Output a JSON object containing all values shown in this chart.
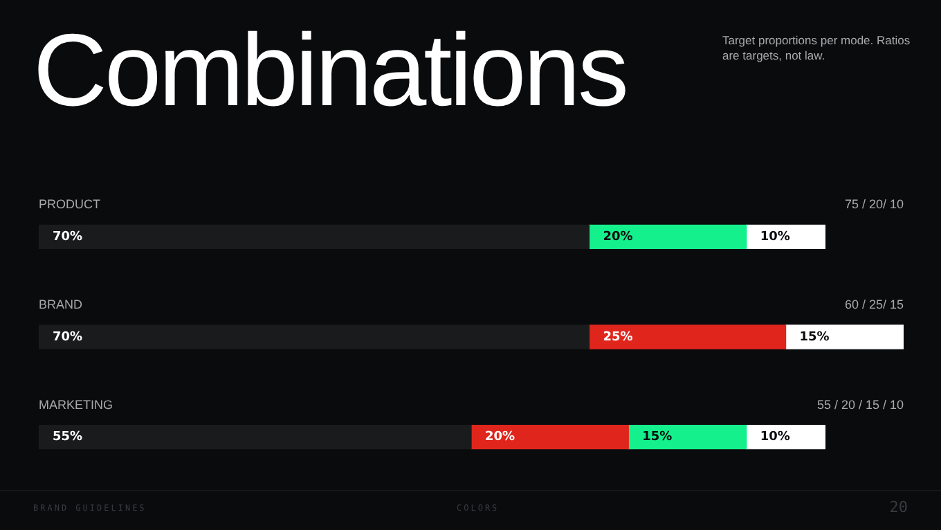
{
  "chart_data": {
    "type": "bar",
    "orientation": "horizontal",
    "stacked": true,
    "title": "Combinations",
    "subtitle": "Target proportions per mode. Ratios are targets, not law.",
    "categories": [
      "PRODUCT",
      "BRAND",
      "MARKETING"
    ],
    "series": [
      {
        "color": "#1a1b1d",
        "values": [
          70,
          70,
          55
        ],
        "value_labels": [
          "70%",
          "70%",
          "55%"
        ]
      },
      {
        "color": "#e0261c",
        "values": [
          null,
          25,
          20
        ],
        "value_labels": [
          null,
          "25%",
          "20%"
        ]
      },
      {
        "color": "#14f08c",
        "values": [
          20,
          null,
          15
        ],
        "value_labels": [
          "20%",
          null,
          "15%"
        ]
      },
      {
        "color": "#ffffff",
        "values": [
          10,
          15,
          10
        ],
        "value_labels": [
          "10%",
          "15%",
          "10%"
        ]
      }
    ],
    "tick_labels": "y",
    "grid": false,
    "legend": false,
    "annotations": [
      "75 / 20/ 10",
      "60 / 25/ 15",
      "55 / 20 / 15 / 10",
      "BRAND GUIDELINES",
      "COLORS",
      "20"
    ]
  }
}
